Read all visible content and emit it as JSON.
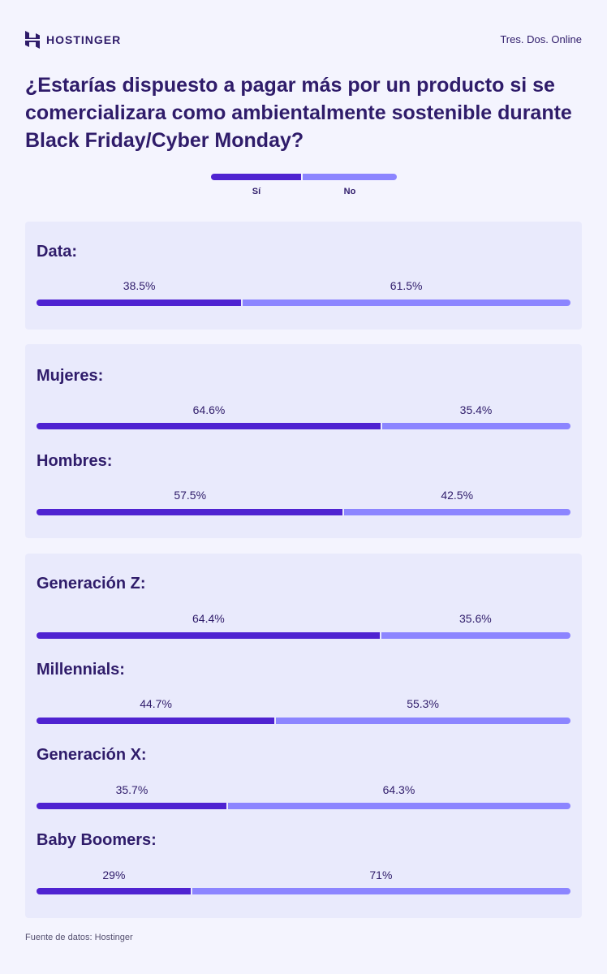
{
  "header": {
    "brand": "HOSTINGER",
    "publisher": "Tres. Dos. Online"
  },
  "colors": {
    "yes": "#4f23d1",
    "no": "#8c85ff",
    "text": "#2f1c6a",
    "card": "#e9eafc"
  },
  "chart_data": {
    "type": "bar",
    "orientation": "horizontal-stacked-100",
    "title": "¿Estarías dispuesto a pagar más por un producto si se comercializara como ambientalmente sostenible durante Black Friday/Cyber Monday?",
    "legend": [
      "Sí",
      "No"
    ],
    "legend_position": "top-center",
    "groups": [
      {
        "rows": [
          {
            "label": "Data:",
            "yes": 38.5,
            "no": 61.5,
            "yes_label": "38.5%",
            "no_label": "61.5%"
          }
        ]
      },
      {
        "rows": [
          {
            "label": "Mujeres:",
            "yes": 64.6,
            "no": 35.4,
            "yes_label": "64.6%",
            "no_label": "35.4%"
          },
          {
            "label": "Hombres:",
            "yes": 57.5,
            "no": 42.5,
            "yes_label": "57.5%",
            "no_label": "42.5%"
          }
        ]
      },
      {
        "rows": [
          {
            "label": "Generación Z:",
            "yes": 64.4,
            "no": 35.6,
            "yes_label": "64.4%",
            "no_label": "35.6%"
          },
          {
            "label": "Millennials:",
            "yes": 44.7,
            "no": 55.3,
            "yes_label": "44.7%",
            "no_label": "55.3%"
          },
          {
            "label": "Generación X:",
            "yes": 35.7,
            "no": 64.3,
            "yes_label": "35.7%",
            "no_label": "64.3%"
          },
          {
            "label": "Baby Boomers:",
            "yes": 29,
            "no": 71,
            "yes_label": "29%",
            "no_label": "71%"
          }
        ]
      }
    ]
  },
  "footer": "Fuente de datos: Hostinger"
}
